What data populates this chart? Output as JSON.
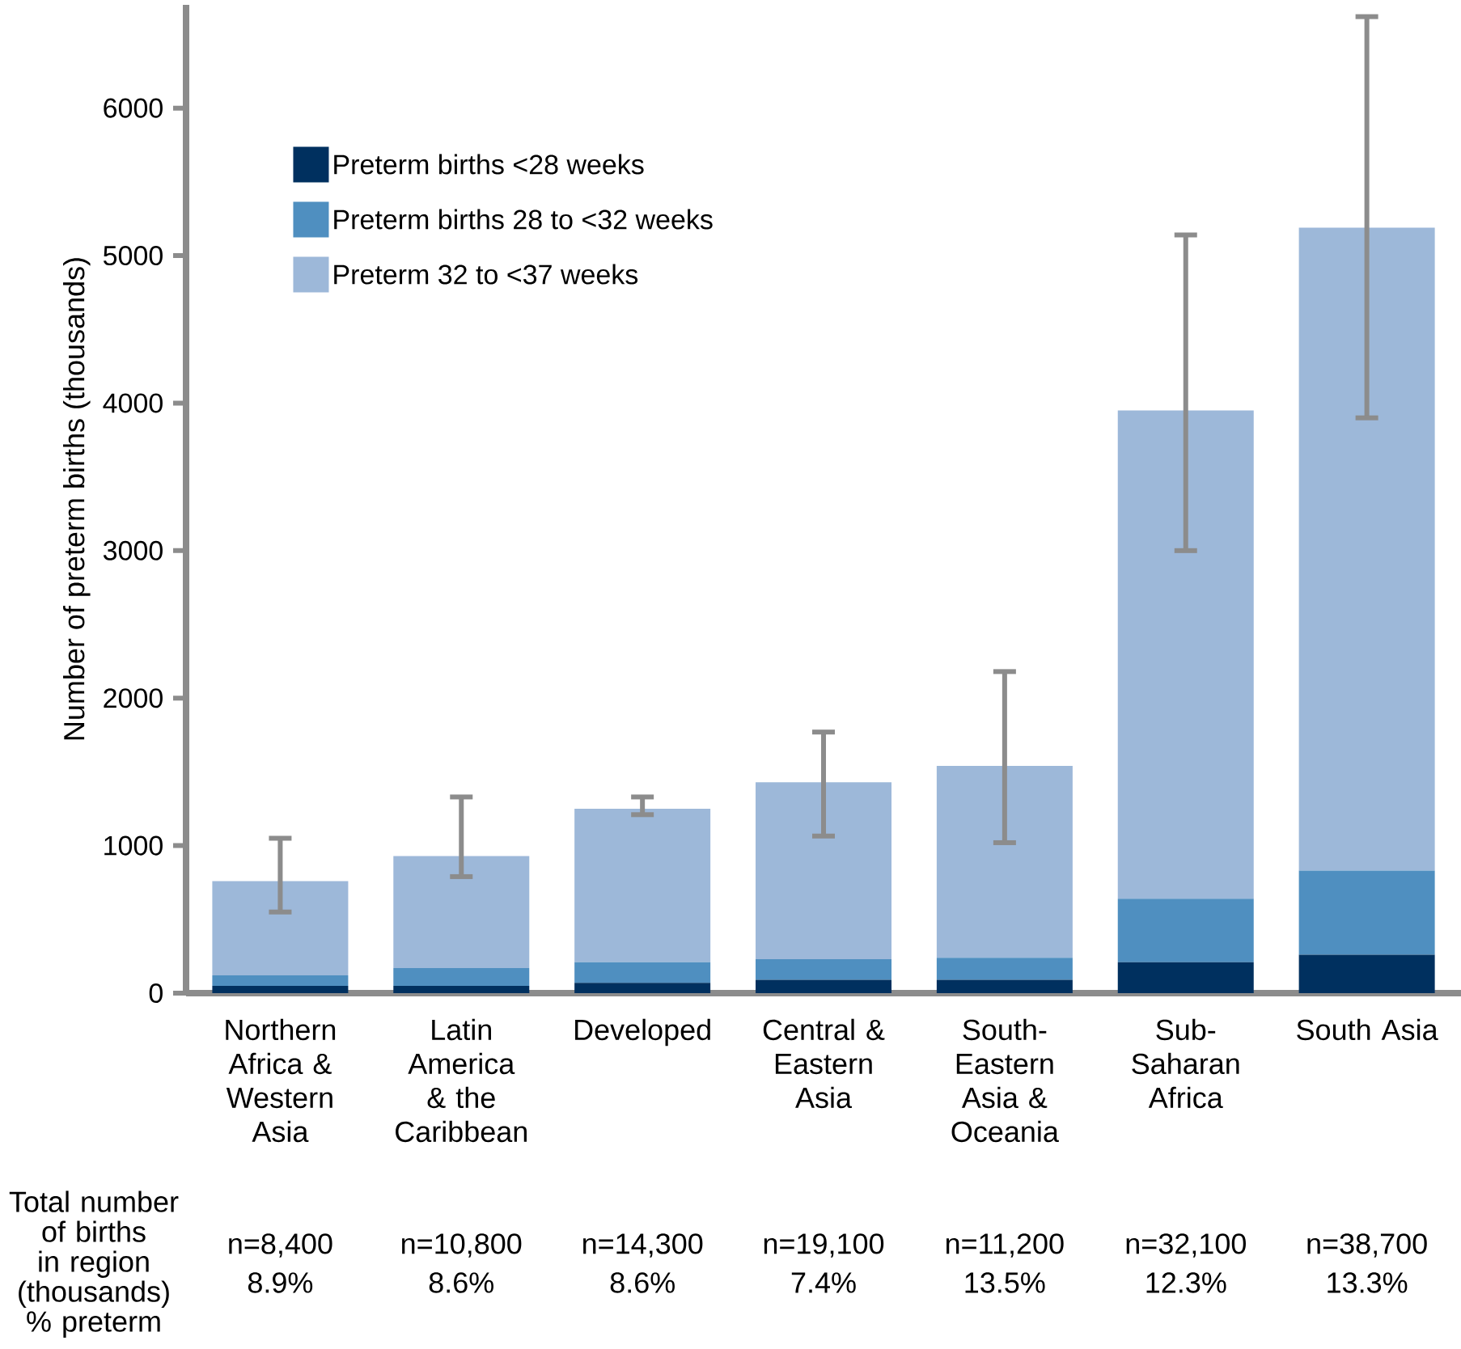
{
  "chart_data": {
    "type": "bar",
    "stacked": true,
    "ylabel": "Number of preterm births (thousands)",
    "categories": [
      "Northern Africa & Western Asia",
      "Latin America & the Caribbean",
      "Developed",
      "Central & Eastern Asia",
      "South-Eastern Asia & Oceania",
      "Sub-Saharan Africa",
      "South Asia"
    ],
    "series": [
      {
        "name": "Preterm births <28 weeks",
        "color": "#00305f",
        "values": [
          50,
          50,
          70,
          90,
          90,
          210,
          260
        ]
      },
      {
        "name": "Preterm births 28 to <32 weeks",
        "color": "#4f8fc0",
        "values": [
          70,
          120,
          140,
          140,
          150,
          430,
          570
        ]
      },
      {
        "name": "Preterm 32 to <37 weeks",
        "color": "#9db8d9",
        "values": [
          640,
          760,
          1040,
          1200,
          1300,
          3310,
          4360
        ],
        "errors": [
          [
            550,
            1050
          ],
          [
            790,
            1330
          ],
          [
            1210,
            1330
          ],
          [
            1065,
            1770
          ],
          [
            1020,
            2180
          ],
          [
            3000,
            5140
          ],
          [
            3900,
            6620
          ]
        ]
      }
    ],
    "ylim": [
      0,
      6700
    ],
    "yticks": [
      0,
      1000,
      2000,
      3000,
      4000,
      5000,
      6000
    ],
    "legend": "top left",
    "grid": false,
    "annotations": [
      "Total number of births in region (thousands) % preterm",
      "n=8,400",
      "8.9%",
      "n=10,800",
      "8.6%",
      "n=14,300",
      "8.6%",
      "n=19,100",
      "7.4%",
      "n=11,200",
      "13.5%",
      "n=32,100",
      "12.3%",
      "n=38,700",
      "13.3%"
    ]
  }
}
